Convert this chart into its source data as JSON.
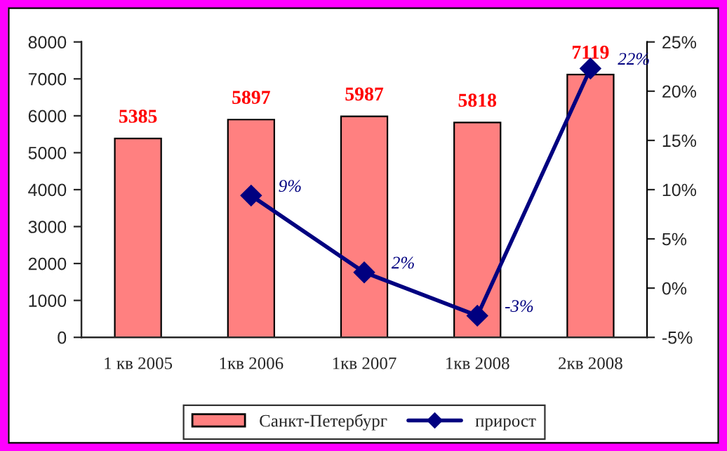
{
  "chart_data": {
    "type": "bar",
    "categories": [
      "1 кв 2005",
      "1кв 2006",
      "1кв 2007",
      "1кв 2008",
      "2кв 2008"
    ],
    "series": [
      {
        "name": "Санкт-Петербург",
        "color": "#ff8080",
        "values": [
          5385,
          5897,
          5987,
          5818,
          7119
        ],
        "value_labels": [
          "5385",
          "5897",
          "5987",
          "5818",
          "7119"
        ]
      },
      {
        "name": "прирост",
        "type": "line",
        "axis": "y2",
        "color": "#000080",
        "marker": "diamond",
        "values": [
          null,
          9.4,
          1.6,
          -2.8,
          22.3
        ],
        "value_labels": [
          null,
          "9%",
          "2%",
          "-3%",
          "22%"
        ]
      }
    ],
    "ylim": [
      0,
      8000
    ],
    "yticks": [
      0,
      1000,
      2000,
      3000,
      4000,
      5000,
      6000,
      7000,
      8000
    ],
    "y2lim": [
      -5,
      25
    ],
    "y2ticks": [
      {
        "value": -5,
        "label": "-5%"
      },
      {
        "value": 0,
        "label": "0%"
      },
      {
        "value": 5,
        "label": "5%"
      },
      {
        "value": 10,
        "label": "10%"
      },
      {
        "value": 15,
        "label": "15%"
      },
      {
        "value": 20,
        "label": "20%"
      },
      {
        "value": 25,
        "label": "25%"
      }
    ],
    "grid": false,
    "legend": "bottom"
  }
}
